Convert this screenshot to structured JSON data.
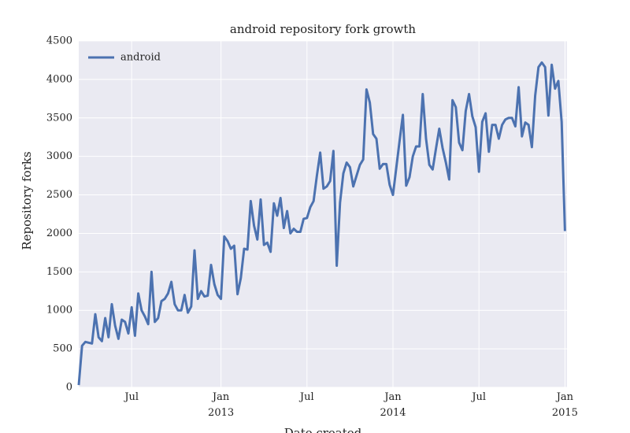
{
  "chart_data": {
    "type": "line",
    "title": "android repository fork growth",
    "x_label": "Date created",
    "y_label": "Repository forks",
    "categories": [
      null,
      null,
      null,
      null,
      null,
      null,
      null,
      null,
      null,
      null,
      null,
      null,
      null,
      null,
      null,
      null,
      "Jul",
      null,
      null,
      null,
      null,
      null,
      null,
      null,
      null,
      null,
      null,
      null,
      null,
      null,
      null,
      null,
      null,
      null,
      null,
      null,
      null,
      null,
      null,
      null,
      null,
      null,
      null,
      "Jan\n2013",
      null,
      null,
      null,
      null,
      null,
      null,
      null,
      null,
      null,
      null,
      null,
      null,
      null,
      null,
      null,
      null,
      null,
      null,
      null,
      null,
      null,
      null,
      null,
      null,
      null,
      "Jul",
      null,
      null,
      null,
      null,
      null,
      null,
      null,
      null,
      null,
      null,
      null,
      null,
      null,
      null,
      null,
      null,
      null,
      null,
      null,
      null,
      null,
      null,
      null,
      null,
      null,
      "Jan\n2014",
      null,
      null,
      null,
      null,
      null,
      null,
      null,
      null,
      null,
      null,
      null,
      null,
      null,
      null,
      null,
      null,
      null,
      null,
      null,
      null,
      null,
      null,
      null,
      null,
      null,
      "Jul",
      null,
      null,
      null,
      null,
      null,
      null,
      null,
      null,
      null,
      null,
      null,
      null,
      null,
      null,
      null,
      null,
      null,
      null,
      null,
      null,
      null,
      null,
      null,
      null,
      null,
      "Jan\n2015"
    ],
    "series": [
      {
        "name": "android",
        "color": "#4c72b0",
        "values": [
          30,
          540,
          590,
          580,
          570,
          950,
          650,
          600,
          900,
          650,
          1080,
          800,
          630,
          880,
          850,
          700,
          1040,
          670,
          1220,
          1000,
          920,
          820,
          1500,
          850,
          900,
          1120,
          1150,
          1220,
          1370,
          1080,
          1000,
          1000,
          1200,
          970,
          1050,
          1780,
          1150,
          1250,
          1180,
          1190,
          1590,
          1340,
          1200,
          1150,
          1960,
          1900,
          1800,
          1840,
          1210,
          1420,
          1800,
          1790,
          2420,
          2100,
          1920,
          2440,
          1850,
          1880,
          1760,
          2390,
          2230,
          2460,
          2070,
          2290,
          2000,
          2060,
          2020,
          2020,
          2190,
          2200,
          2340,
          2420,
          2750,
          3050,
          2580,
          2610,
          2680,
          3070,
          1580,
          2400,
          2780,
          2920,
          2860,
          2610,
          2750,
          2890,
          2960,
          3870,
          3700,
          3290,
          3230,
          2840,
          2900,
          2900,
          2630,
          2500,
          2850,
          3200,
          3540,
          2620,
          2730,
          3000,
          3130,
          3130,
          3810,
          3230,
          2890,
          2830,
          3100,
          3360,
          3110,
          2920,
          2700,
          3730,
          3640,
          3180,
          3080,
          3590,
          3810,
          3520,
          3380,
          2800,
          3450,
          3560,
          3060,
          3410,
          3410,
          3230,
          3410,
          3480,
          3500,
          3500,
          3390,
          3900,
          3260,
          3440,
          3410,
          3120,
          3790,
          4160,
          4220,
          4160,
          3530,
          4190,
          3880,
          3980,
          3450,
          2030
        ]
      }
    ],
    "ylim": [
      0,
      4500
    ],
    "yticks": [
      0,
      500,
      1000,
      1500,
      2000,
      2500,
      3000,
      3500,
      4000,
      4500
    ],
    "grid": true,
    "legend": "upper left"
  }
}
